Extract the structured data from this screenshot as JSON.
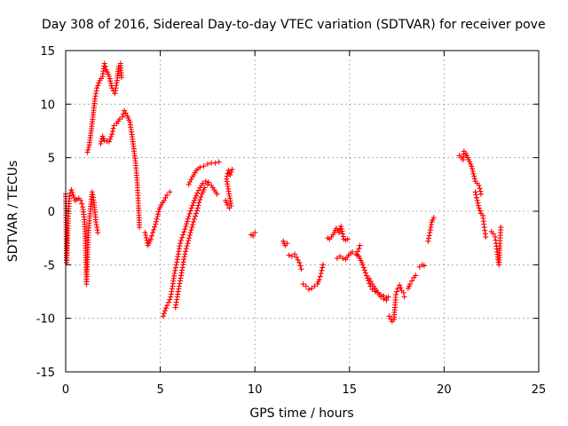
{
  "chart_data": {
    "type": "scatter",
    "title": "Day 308 of 2016, Sidereal Day-to-day VTEC variation (SDTVAR) for receiver pove",
    "xlabel": "GPS time / hours",
    "ylabel": "SDTVAR / TECUs",
    "xlim": [
      0,
      25
    ],
    "ylim": [
      -15,
      15
    ],
    "xticks": [
      0,
      5,
      10,
      15,
      20,
      25
    ],
    "yticks": [
      -15,
      -10,
      -5,
      0,
      5,
      10,
      15
    ],
    "grid": true,
    "marker": "+",
    "color": "#ff0000",
    "series": [
      {
        "name": "SDTVAR",
        "segments": [
          [
            [
              0.0,
              1.6
            ],
            [
              0.05,
              -4.8
            ],
            [
              0.1,
              -2.5
            ],
            [
              0.15,
              0.0
            ],
            [
              0.2,
              1.4
            ],
            [
              0.3,
              2.0
            ],
            [
              0.4,
              1.5
            ],
            [
              0.5,
              1.0
            ],
            [
              0.6,
              1.1
            ],
            [
              0.7,
              1.2
            ],
            [
              0.8,
              1.0
            ],
            [
              0.9,
              0.4
            ],
            [
              1.0,
              -1.0
            ],
            [
              1.05,
              -3.0
            ],
            [
              1.1,
              -6.8
            ],
            [
              1.15,
              -4.5
            ],
            [
              1.2,
              -2.0
            ],
            [
              1.3,
              0.0
            ],
            [
              1.4,
              1.8
            ],
            [
              1.5,
              0.8
            ],
            [
              1.6,
              -1.0
            ],
            [
              1.7,
              -2.0
            ]
          ],
          [
            [
              1.15,
              5.5
            ],
            [
              1.25,
              6.2
            ],
            [
              1.35,
              7.5
            ],
            [
              1.45,
              9.0
            ],
            [
              1.55,
              10.5
            ],
            [
              1.65,
              11.5
            ],
            [
              1.8,
              12.2
            ],
            [
              1.95,
              12.6
            ],
            [
              2.05,
              13.8
            ],
            [
              2.15,
              13.2
            ],
            [
              2.3,
              12.6
            ],
            [
              2.45,
              11.5
            ],
            [
              2.6,
              11.0
            ],
            [
              2.7,
              12.0
            ],
            [
              2.8,
              13.5
            ],
            [
              2.9,
              13.8
            ],
            [
              2.95,
              12.5
            ]
          ],
          [
            [
              1.85,
              6.3
            ],
            [
              1.95,
              7.0
            ],
            [
              2.05,
              6.6
            ],
            [
              2.3,
              6.5
            ],
            [
              2.45,
              7.2
            ],
            [
              2.55,
              8.0
            ],
            [
              2.7,
              8.2
            ],
            [
              2.85,
              8.6
            ],
            [
              3.0,
              8.8
            ],
            [
              3.1,
              9.4
            ],
            [
              3.25,
              8.9
            ],
            [
              3.4,
              8.3
            ],
            [
              3.55,
              6.5
            ],
            [
              3.7,
              4.5
            ],
            [
              3.8,
              2.2
            ],
            [
              3.85,
              0.5
            ],
            [
              3.9,
              -1.5
            ]
          ],
          [
            [
              4.2,
              -2.0
            ],
            [
              4.35,
              -3.2
            ],
            [
              4.5,
              -2.6
            ],
            [
              4.6,
              -2.0
            ],
            [
              4.75,
              -1.2
            ],
            [
              4.85,
              -0.5
            ],
            [
              4.95,
              0.2
            ],
            [
              5.05,
              0.6
            ],
            [
              5.2,
              1.0
            ],
            [
              5.35,
              1.5
            ],
            [
              5.5,
              1.8
            ]
          ],
          [
            [
              5.15,
              -9.8
            ],
            [
              5.25,
              -9.3
            ],
            [
              5.35,
              -8.8
            ],
            [
              5.45,
              -8.5
            ],
            [
              5.55,
              -8.0
            ],
            [
              5.65,
              -7.0
            ],
            [
              5.75,
              -5.8
            ],
            [
              5.85,
              -5.0
            ],
            [
              5.95,
              -4.0
            ],
            [
              6.05,
              -3.0
            ],
            [
              6.2,
              -2.2
            ],
            [
              6.35,
              -1.4
            ],
            [
              6.5,
              -0.5
            ],
            [
              6.65,
              0.3
            ],
            [
              6.8,
              1.0
            ],
            [
              6.95,
              1.7
            ],
            [
              7.1,
              2.2
            ],
            [
              7.25,
              2.6
            ],
            [
              7.4,
              2.8
            ],
            [
              7.55,
              2.7
            ],
            [
              7.7,
              2.4
            ],
            [
              7.85,
              2.0
            ],
            [
              8.0,
              1.6
            ]
          ],
          [
            [
              5.8,
              -9.0
            ],
            [
              5.9,
              -8.0
            ],
            [
              6.0,
              -7.0
            ],
            [
              6.1,
              -6.0
            ],
            [
              6.2,
              -5.0
            ],
            [
              6.3,
              -4.0
            ],
            [
              6.45,
              -3.0
            ],
            [
              6.6,
              -2.0
            ],
            [
              6.75,
              -1.0
            ],
            [
              6.9,
              -0.2
            ],
            [
              7.05,
              0.8
            ],
            [
              7.2,
              1.6
            ],
            [
              7.35,
              2.2
            ],
            [
              7.5,
              2.5
            ]
          ],
          [
            [
              6.5,
              2.5
            ],
            [
              6.7,
              3.2
            ],
            [
              6.9,
              3.8
            ],
            [
              7.1,
              4.1
            ],
            [
              7.3,
              4.2
            ],
            [
              7.5,
              4.4
            ],
            [
              7.7,
              4.5
            ],
            [
              7.9,
              4.5
            ],
            [
              8.1,
              4.6
            ]
          ],
          [
            [
              8.45,
              1.0
            ],
            [
              8.55,
              0.6
            ],
            [
              8.65,
              0.3
            ],
            [
              8.75,
              0.5
            ],
            [
              8.5,
              3.0
            ],
            [
              8.6,
              3.8
            ],
            [
              8.7,
              3.4
            ],
            [
              8.8,
              3.9
            ]
          ],
          [
            [
              9.8,
              -2.2
            ],
            [
              9.9,
              -2.3
            ],
            [
              10.0,
              -2.0
            ]
          ],
          [
            [
              11.5,
              -2.8
            ],
            [
              11.6,
              -3.2
            ],
            [
              11.7,
              -3.0
            ]
          ],
          [
            [
              11.8,
              -4.1
            ],
            [
              11.95,
              -4.2
            ],
            [
              12.1,
              -4.0
            ],
            [
              12.2,
              -4.3
            ],
            [
              12.35,
              -4.8
            ],
            [
              12.45,
              -5.4
            ]
          ],
          [
            [
              12.55,
              -6.8
            ],
            [
              12.7,
              -7.0
            ],
            [
              12.85,
              -7.3
            ],
            [
              13.0,
              -7.2
            ],
            [
              13.15,
              -7.0
            ],
            [
              13.3,
              -6.8
            ],
            [
              13.4,
              -6.4
            ],
            [
              13.5,
              -5.8
            ],
            [
              13.6,
              -5.0
            ]
          ],
          [
            [
              13.85,
              -2.5
            ],
            [
              13.95,
              -2.6
            ],
            [
              14.05,
              -2.4
            ],
            [
              14.2,
              -2.0
            ],
            [
              14.3,
              -1.6
            ],
            [
              14.45,
              -2.0
            ],
            [
              14.55,
              -1.4
            ],
            [
              14.7,
              -2.6
            ],
            [
              14.8,
              -2.7
            ],
            [
              14.9,
              -2.6
            ]
          ],
          [
            [
              14.35,
              -4.4
            ],
            [
              14.5,
              -4.2
            ],
            [
              14.65,
              -4.4
            ],
            [
              14.8,
              -4.5
            ],
            [
              14.95,
              -4.1
            ],
            [
              15.15,
              -3.8
            ],
            [
              15.35,
              -4.0
            ],
            [
              15.5,
              -3.5
            ],
            [
              15.55,
              -3.2
            ]
          ],
          [
            [
              15.4,
              -4.1
            ],
            [
              15.5,
              -4.2
            ],
            [
              15.6,
              -4.6
            ],
            [
              15.7,
              -5.0
            ],
            [
              15.8,
              -5.5
            ],
            [
              15.9,
              -6.0
            ],
            [
              16.0,
              -6.5
            ],
            [
              16.1,
              -7.0
            ],
            [
              16.2,
              -7.3
            ],
            [
              16.35,
              -7.5
            ],
            [
              16.5,
              -7.6
            ],
            [
              16.65,
              -7.8
            ],
            [
              16.8,
              -7.9
            ],
            [
              16.95,
              -8.1
            ]
          ],
          [
            [
              16.05,
              -6.3
            ],
            [
              16.2,
              -6.8
            ],
            [
              16.35,
              -7.2
            ],
            [
              16.5,
              -7.6
            ],
            [
              16.65,
              -8.0
            ],
            [
              16.8,
              -8.2
            ],
            [
              16.95,
              -8.3
            ],
            [
              17.05,
              -8.0
            ]
          ],
          [
            [
              17.1,
              -9.8
            ],
            [
              17.25,
              -10.3
            ],
            [
              17.35,
              -10.1
            ],
            [
              17.4,
              -9.0
            ],
            [
              17.45,
              -7.8
            ],
            [
              17.55,
              -7.2
            ],
            [
              17.65,
              -6.9
            ],
            [
              17.75,
              -7.4
            ],
            [
              17.85,
              -7.6
            ],
            [
              17.9,
              -8.0
            ]
          ],
          [
            [
              18.1,
              -7.2
            ],
            [
              18.2,
              -6.8
            ],
            [
              18.3,
              -6.5
            ],
            [
              18.4,
              -6.2
            ],
            [
              18.5,
              -6.0
            ]
          ],
          [
            [
              18.7,
              -5.2
            ],
            [
              18.85,
              -5.0
            ],
            [
              18.95,
              -5.1
            ]
          ],
          [
            [
              19.15,
              -2.8
            ],
            [
              19.25,
              -2.0
            ],
            [
              19.35,
              -1.0
            ],
            [
              19.45,
              -0.6
            ]
          ],
          [
            [
              20.8,
              5.2
            ],
            [
              20.9,
              5.0
            ],
            [
              21.0,
              4.8
            ],
            [
              21.05,
              5.6
            ],
            [
              21.15,
              5.4
            ],
            [
              21.25,
              5.0
            ],
            [
              21.35,
              4.6
            ],
            [
              21.45,
              4.2
            ],
            [
              21.55,
              3.5
            ],
            [
              21.65,
              2.8
            ],
            [
              21.75,
              2.6
            ],
            [
              21.85,
              2.4
            ],
            [
              21.95,
              1.6
            ]
          ],
          [
            [
              21.65,
              1.8
            ],
            [
              21.75,
              1.0
            ],
            [
              21.85,
              0.3
            ],
            [
              21.95,
              -0.2
            ]
          ],
          [
            [
              22.05,
              -0.4
            ],
            [
              22.1,
              -1.2
            ],
            [
              22.15,
              -1.8
            ],
            [
              22.2,
              -2.4
            ]
          ],
          [
            [
              22.5,
              -1.9
            ],
            [
              22.6,
              -2.1
            ],
            [
              22.7,
              -2.4
            ],
            [
              22.75,
              -3.0
            ],
            [
              22.8,
              -3.8
            ],
            [
              22.85,
              -4.5
            ],
            [
              22.9,
              -5.0
            ],
            [
              22.95,
              -3.0
            ],
            [
              23.0,
              -1.5
            ]
          ]
        ]
      }
    ]
  }
}
